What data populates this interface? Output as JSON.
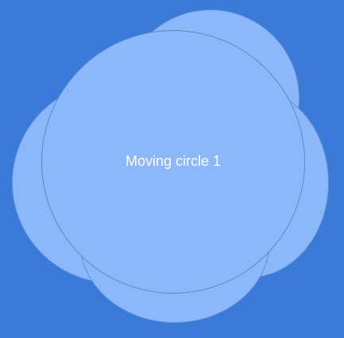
{
  "background_color": "#3a7ad8",
  "circle_color": "#8ab8fb",
  "circles": {
    "main": {
      "label": "Moving circle 1"
    }
  }
}
